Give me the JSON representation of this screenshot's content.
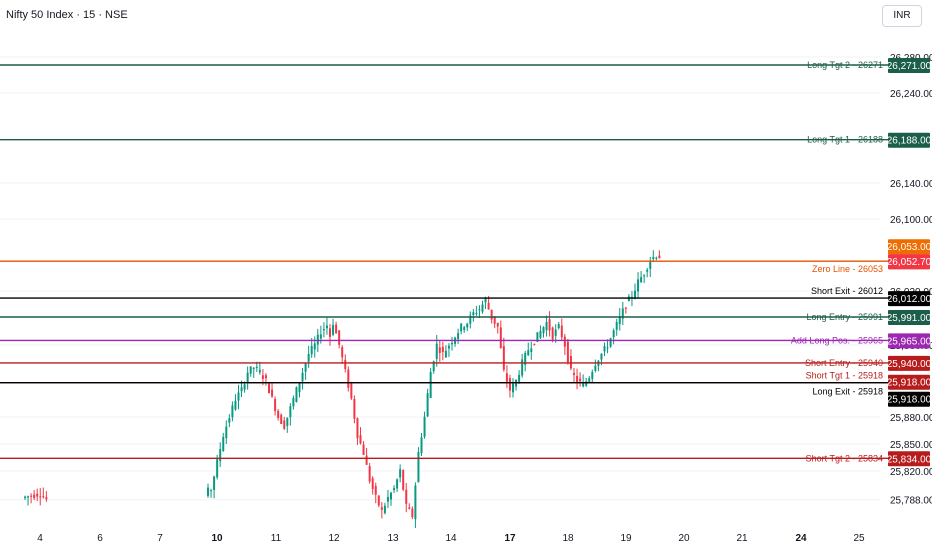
{
  "header": {
    "title": "Nifty 50 Index · 15 · NSE",
    "currency": "INR"
  },
  "chart_data": {
    "type": "candlestick",
    "y_axis": {
      "ticks": [
        "26,280.00",
        "26,240.00",
        "26,140.00",
        "26,100.00",
        "26,020.00",
        "25,960.00",
        "25,880.00",
        "25,850.00",
        "25,820.00",
        "25,788.00"
      ],
      "tick_values": [
        26280,
        26240,
        26140,
        26100,
        26020,
        25960,
        25880,
        25850,
        25820,
        25788
      ]
    },
    "x_axis": {
      "ticks": [
        "4",
        "6",
        "7",
        "10",
        "11",
        "12",
        "13",
        "14",
        "17",
        "18",
        "19",
        "20",
        "21",
        "24",
        "25"
      ],
      "bold_ticks": [
        "10",
        "17",
        "24"
      ]
    },
    "levels": [
      {
        "label": "Long Tgt 2 - 26271",
        "value": 26271,
        "price": "26,271.00",
        "color": "#1b5e4a"
      },
      {
        "label": "Long Tgt 1 - 26188",
        "value": 26188,
        "price": "26,188.00",
        "color": "#1b5e4a"
      },
      {
        "label": "Zero Line - 26053",
        "value": 26053,
        "price": "26,052.70",
        "color": "#e65100"
      },
      {
        "label": "Short Exit - 26012",
        "value": 26012,
        "price": "26,012.00",
        "color": "#000000"
      },
      {
        "label": "Long Entry - 25991",
        "value": 25991,
        "price": "25,991.00",
        "color": "#1b5e4a"
      },
      {
        "label": "Add Long Pos. - 25965",
        "value": 25965,
        "price": "25,965.00",
        "color": "#9c27b0"
      },
      {
        "label": "Short Entry - 25940",
        "value": 25940,
        "price": "25,940.00",
        "color": "#b71c1c"
      },
      {
        "label": "Short Tgt 1 - 25918",
        "value": 25918,
        "price": "25,918.00",
        "color": "#b71c1c"
      },
      {
        "label": "Long Exit - 25918",
        "value": 25918,
        "price": "25,918.00",
        "color": "#000000"
      },
      {
        "label": "Short Tgt 2 - 25834",
        "value": 25834,
        "price": "25,834.00",
        "color": "#b71c1c"
      }
    ],
    "extra_price_badges": [
      {
        "price": "26,053.00",
        "value": 26053,
        "color": "#ef6c00"
      },
      {
        "price": "26,052.70",
        "value": 26053,
        "color": "#f23645"
      }
    ],
    "series_path": [
      [
        0,
        25790
      ],
      [
        6,
        25795
      ],
      [
        8,
        25788
      ],
      [
        60,
        25795
      ],
      [
        62,
        25800
      ],
      [
        64,
        25830
      ],
      [
        66,
        25860
      ],
      [
        68,
        25880
      ],
      [
        70,
        25900
      ],
      [
        72,
        25910
      ],
      [
        74,
        25930
      ],
      [
        76,
        25935
      ],
      [
        78,
        25930
      ],
      [
        80,
        25920
      ],
      [
        82,
        25900
      ],
      [
        84,
        25880
      ],
      [
        86,
        25870
      ],
      [
        88,
        25890
      ],
      [
        90,
        25910
      ],
      [
        92,
        25930
      ],
      [
        94,
        25950
      ],
      [
        96,
        25960
      ],
      [
        98,
        25975
      ],
      [
        100,
        25982
      ],
      [
        101,
        25970
      ],
      [
        102,
        25985
      ],
      [
        104,
        25960
      ],
      [
        106,
        25930
      ],
      [
        108,
        25900
      ],
      [
        110,
        25860
      ],
      [
        112,
        25840
      ],
      [
        114,
        25810
      ],
      [
        116,
        25790
      ],
      [
        118,
        25775
      ],
      [
        120,
        25790
      ],
      [
        122,
        25800
      ],
      [
        124,
        25820
      ],
      [
        126,
        25780
      ],
      [
        128,
        25770
      ],
      [
        130,
        25840
      ],
      [
        132,
        25880
      ],
      [
        134,
        25930
      ],
      [
        136,
        25960
      ],
      [
        138,
        25950
      ],
      [
        140,
        25960
      ],
      [
        142,
        25970
      ],
      [
        144,
        25980
      ],
      [
        146,
        25985
      ],
      [
        148,
        25995
      ],
      [
        150,
        26000
      ],
      [
        152,
        26010
      ],
      [
        154,
        25990
      ],
      [
        156,
        25980
      ],
      [
        158,
        25930
      ],
      [
        160,
        25910
      ],
      [
        162,
        25920
      ],
      [
        164,
        25940
      ],
      [
        166,
        25955
      ],
      [
        168,
        25965
      ],
      [
        170,
        25975
      ],
      [
        172,
        25985
      ],
      [
        174,
        25970
      ],
      [
        176,
        25980
      ],
      [
        178,
        25960
      ],
      [
        180,
        25930
      ],
      [
        182,
        25920
      ],
      [
        184,
        25915
      ],
      [
        186,
        25925
      ],
      [
        188,
        25940
      ],
      [
        190,
        25950
      ],
      [
        192,
        25960
      ],
      [
        194,
        25975
      ],
      [
        196,
        25990
      ],
      [
        198,
        26005
      ],
      [
        200,
        26015
      ],
      [
        202,
        26030
      ],
      [
        204,
        26040
      ],
      [
        206,
        26055
      ],
      [
        208,
        26060
      ],
      [
        209,
        26058
      ]
    ]
  }
}
